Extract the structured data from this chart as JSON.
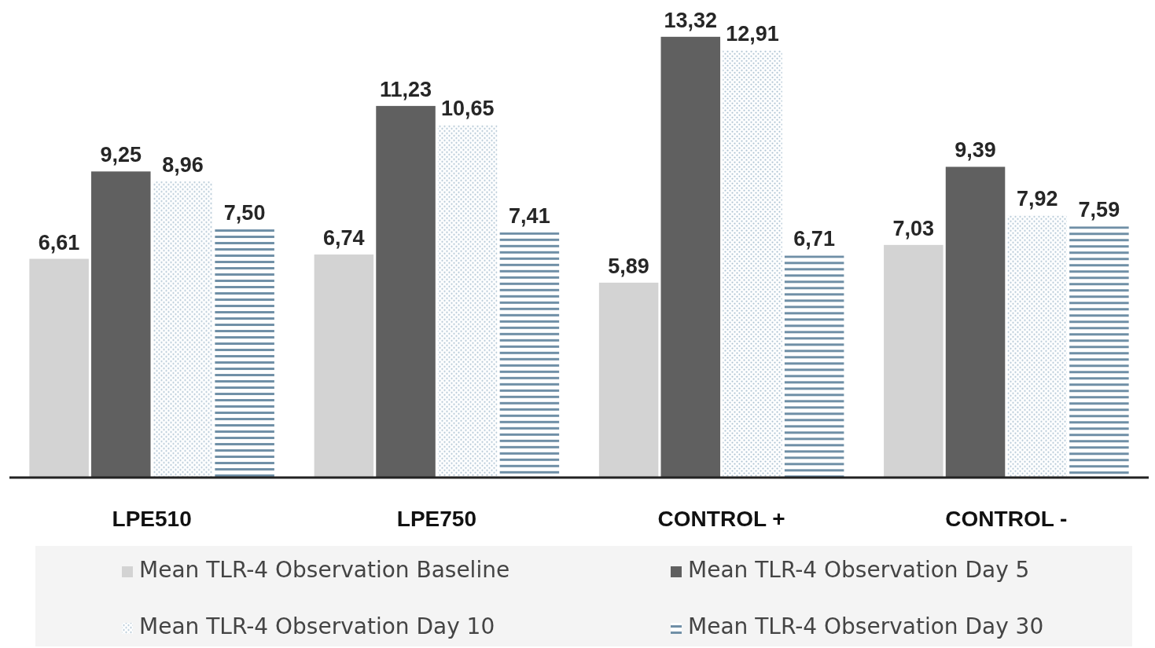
{
  "chart_data": {
    "type": "bar",
    "categories": [
      "LPE510",
      "LPE750",
      "CONTROL +",
      "CONTROL -"
    ],
    "series": [
      {
        "name": "Mean TLR-4 Observation Baseline",
        "color": "#d3d3d3",
        "values": [
          6.61,
          6.74,
          5.89,
          7.03
        ],
        "value_labels": [
          "6,61",
          "6,74",
          "5,89",
          "7,03"
        ]
      },
      {
        "name": "Mean TLR-4 Observation Day 5",
        "color": "#606060",
        "values": [
          9.25,
          11.23,
          13.32,
          9.39
        ],
        "value_labels": [
          "9,25",
          "11,23",
          "13,32",
          "9,39"
        ]
      },
      {
        "name": "Mean TLR-4 Observation Day 10",
        "color": "#a9bfd0",
        "values": [
          8.96,
          10.65,
          12.91,
          7.92
        ],
        "value_labels": [
          "8,96",
          "10,65",
          "12,91",
          "7,92"
        ]
      },
      {
        "name": "Mean TLR-4 Observation Day 30",
        "color": "#6f8fa6",
        "values": [
          7.5,
          7.41,
          6.71,
          7.59
        ],
        "value_labels": [
          "7,50",
          "7,41",
          "6,71",
          "7,59"
        ]
      }
    ],
    "tick_labels": "x",
    "legend": "bottom"
  }
}
